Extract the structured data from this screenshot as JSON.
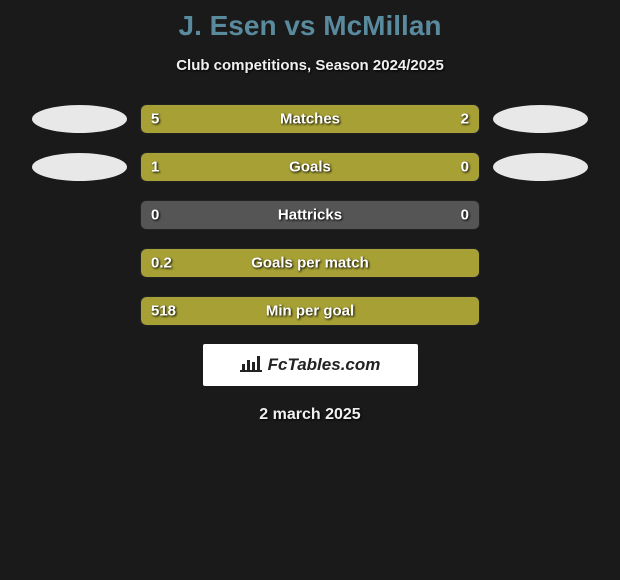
{
  "header": {
    "title": "J. Esen vs McMillan",
    "subtitle": "Club competitions, Season 2024/2025"
  },
  "colors": {
    "background": "#1a1a1a",
    "bar_fill": "#a6a035",
    "bar_empty": "#555555",
    "title_color": "#5A8A9E",
    "text_color": "#f0f0f0",
    "avatar_bg": "#e8e8e8",
    "logo_bg": "#ffffff"
  },
  "stats": [
    {
      "label": "Matches",
      "left_value": "5",
      "right_value": "2",
      "left_pct": 70,
      "right_pct": 30,
      "show_avatars": true
    },
    {
      "label": "Goals",
      "left_value": "1",
      "right_value": "0",
      "left_pct": 80,
      "right_pct": 20,
      "show_avatars": true
    },
    {
      "label": "Hattricks",
      "left_value": "0",
      "right_value": "0",
      "left_pct": 0,
      "right_pct": 0,
      "show_avatars": false
    },
    {
      "label": "Goals per match",
      "left_value": "0.2",
      "right_value": "",
      "left_pct": 100,
      "right_pct": 0,
      "show_avatars": false
    },
    {
      "label": "Min per goal",
      "left_value": "518",
      "right_value": "",
      "left_pct": 100,
      "right_pct": 0,
      "show_avatars": false
    }
  ],
  "footer": {
    "logo_text": "FcTables.com",
    "date": "2 march 2025"
  }
}
